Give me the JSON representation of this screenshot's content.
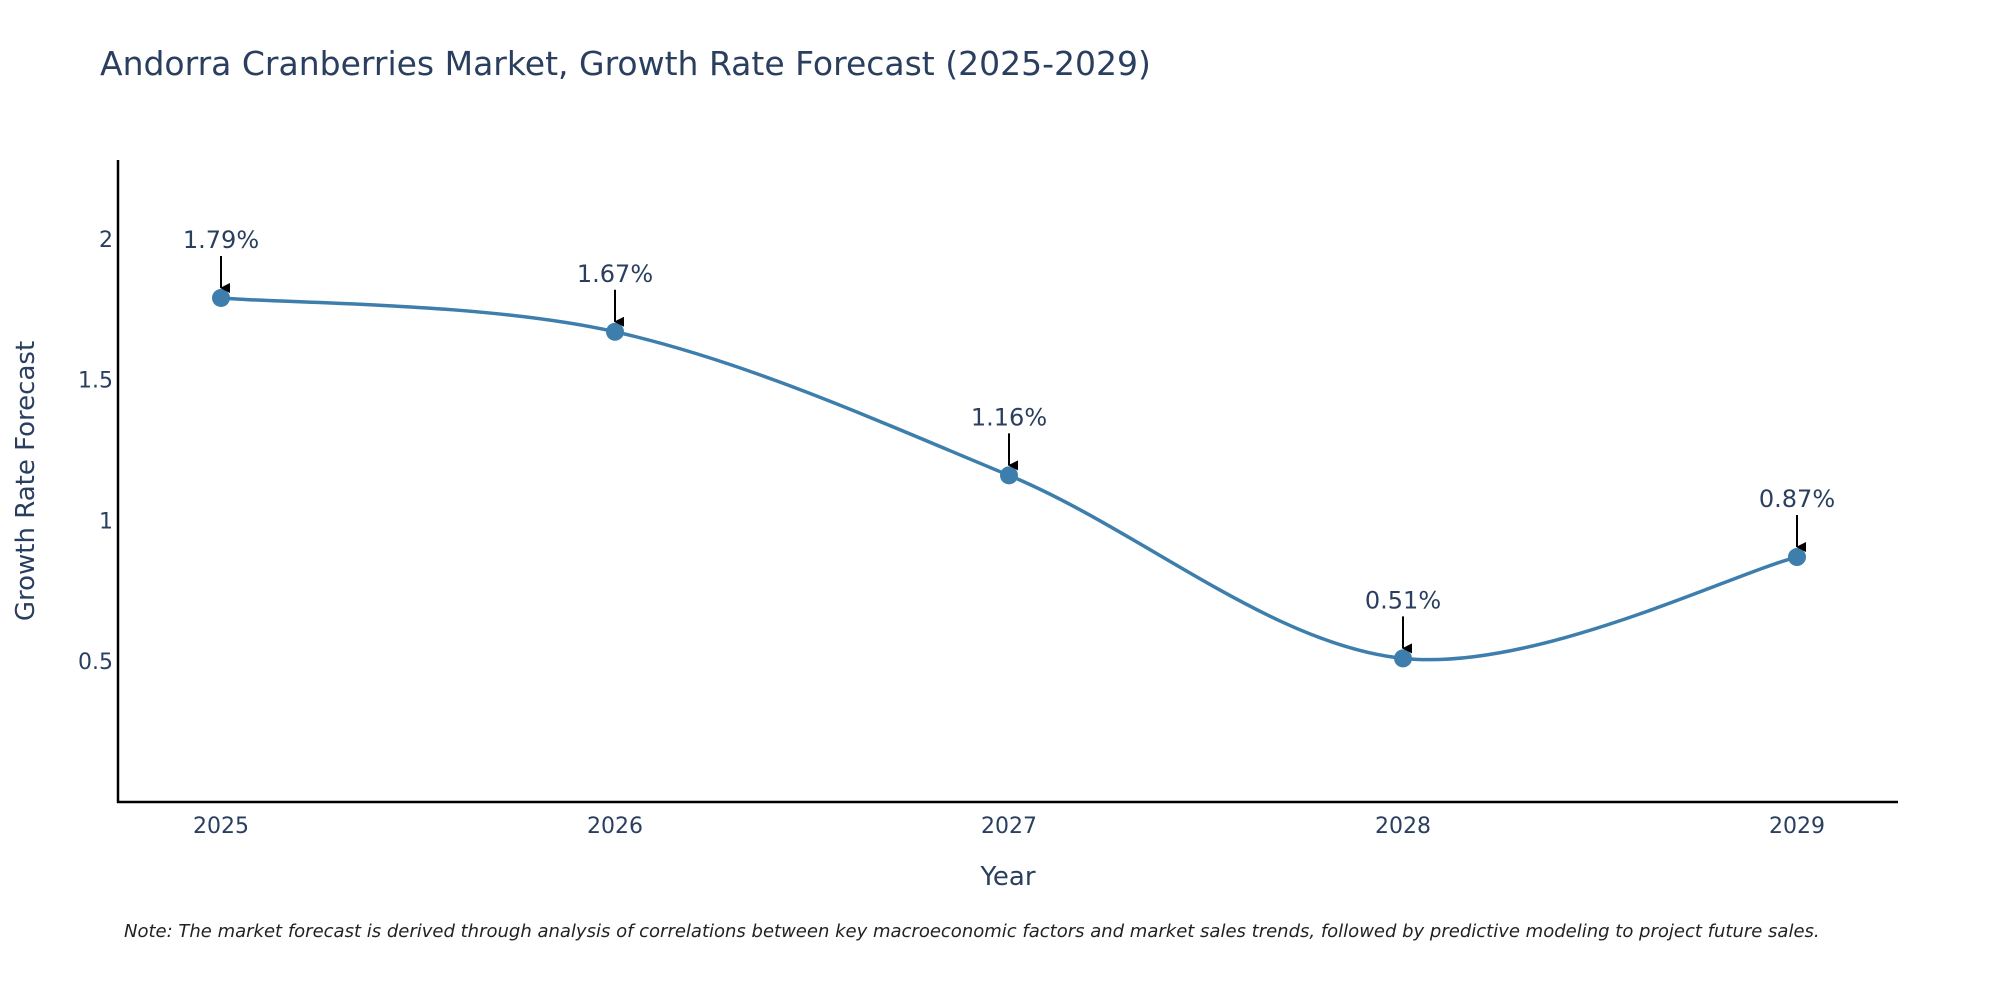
{
  "chart_data": {
    "type": "line",
    "title": "Andorra Cranberries Market, Growth Rate Forecast (2025-2029)",
    "xlabel": "Year",
    "ylabel": "Growth Rate Forecast",
    "categories": [
      "2025",
      "2026",
      "2027",
      "2028",
      "2029"
    ],
    "values": [
      1.79,
      1.67,
      1.16,
      0.51,
      0.87
    ],
    "data_labels": [
      "1.79%",
      "1.67%",
      "1.16%",
      "0.51%",
      "0.87%"
    ],
    "y_ticks": [
      0.5,
      1,
      1.5,
      2
    ],
    "y_tick_labels": [
      "0.5",
      "1",
      "1.5",
      "2"
    ],
    "ylim": [
      0,
      2.28
    ],
    "grid": false,
    "legend": "none",
    "line_color": "#3d7eac",
    "marker_color": "#3d7eac",
    "axis_color": "#000000",
    "text_color": "#2a3f5f"
  },
  "note": "Note: The market forecast is derived through analysis of correlations between key macroeconomic factors and market sales trends, followed by predictive modeling to project future sales."
}
